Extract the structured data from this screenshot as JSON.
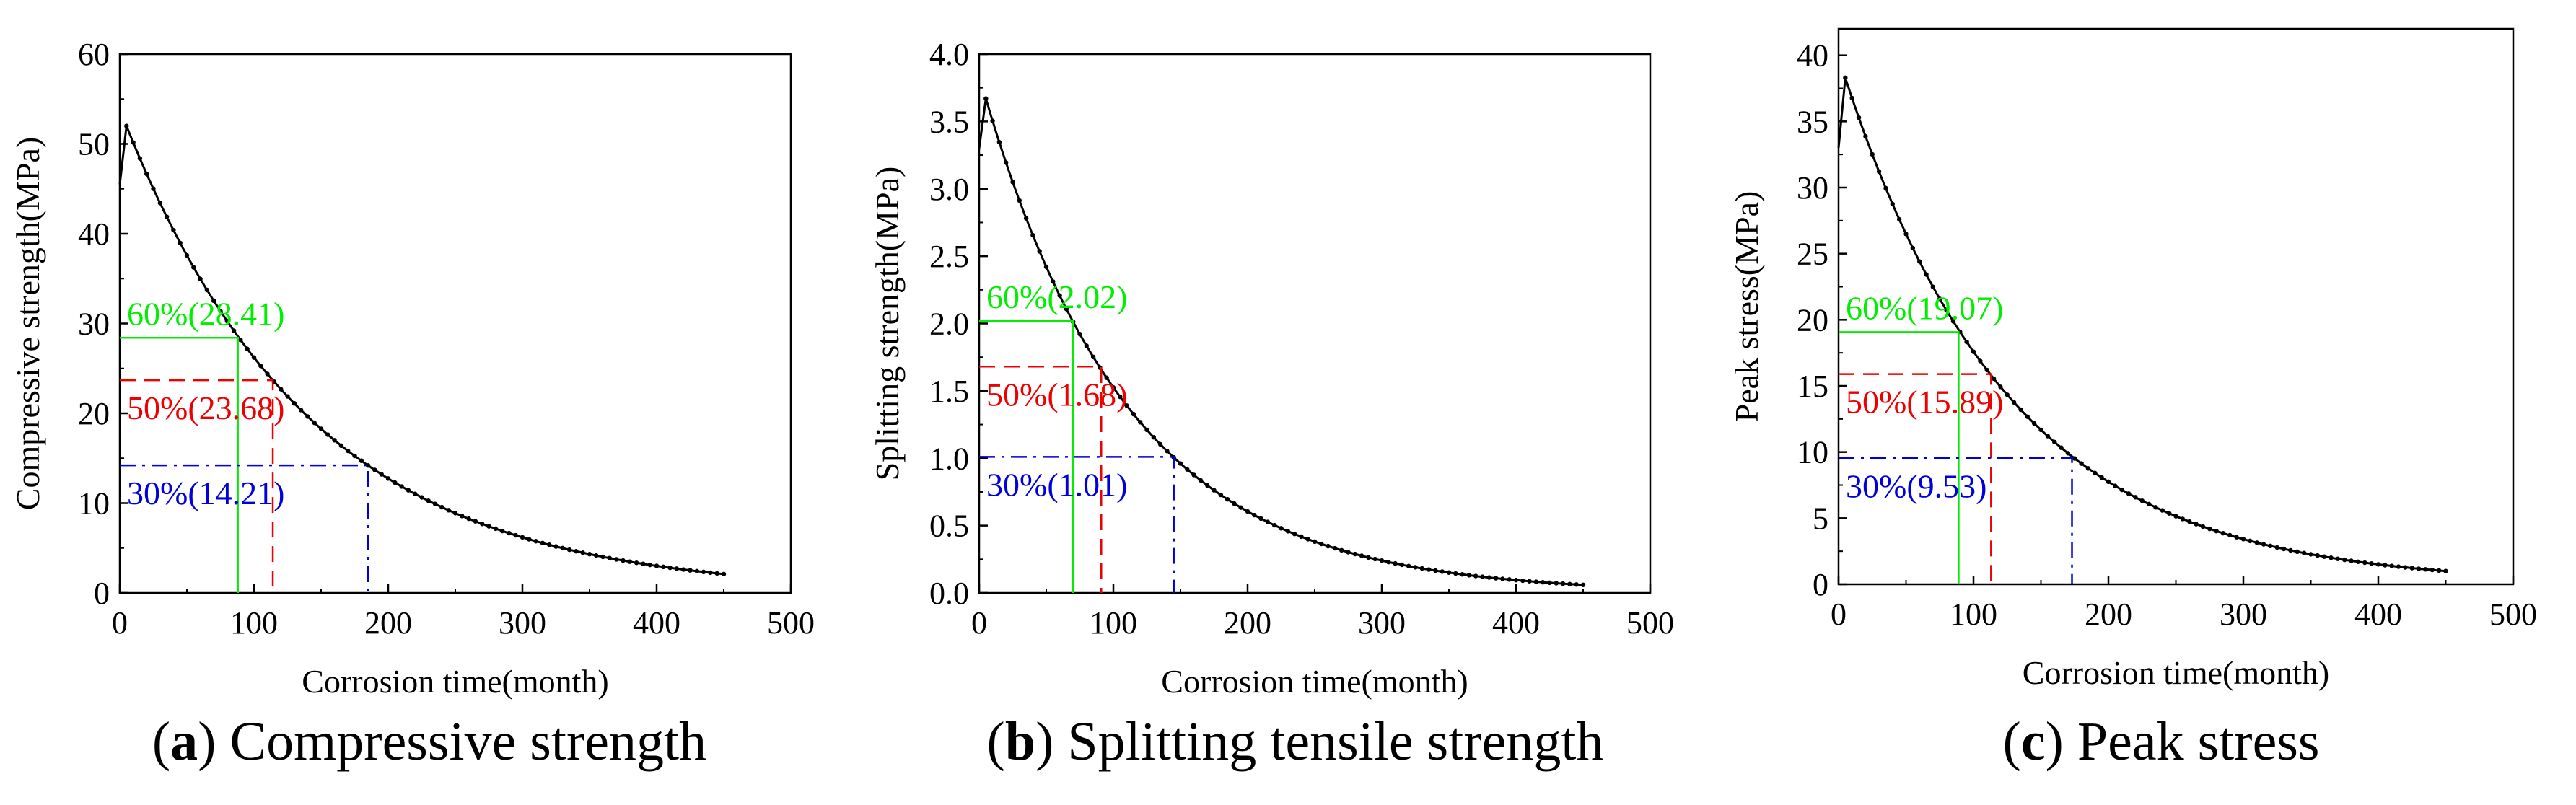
{
  "colors": {
    "curve": "#000000",
    "sixty": "#00ee00",
    "fifty": "#ee0000",
    "thirty": "#0000dd",
    "axis": "#000000"
  },
  "chart_data": [
    {
      "type": "line",
      "caption_letter": "a",
      "caption_text": "Compressive strength",
      "xlabel": "Corrosion time(month)",
      "ylabel": "Compressive strength(MPa)",
      "xlim": [
        0,
        500
      ],
      "ylim": [
        0,
        60
      ],
      "xticks": [
        0,
        100,
        200,
        300,
        400,
        500
      ],
      "xtick_labels": [
        "0",
        "100",
        "200",
        "300",
        "400",
        "500"
      ],
      "yticks": [
        0,
        10,
        20,
        30,
        40,
        50,
        60
      ],
      "ytick_labels": [
        "0",
        "10",
        "20",
        "30",
        "40",
        "50",
        "60"
      ],
      "curve": {
        "x_start": 0,
        "y_start": 45.5,
        "peak_x": 5,
        "peak_y": 52,
        "x_end": 450,
        "y_end": 2.1,
        "marker_step": 5
      },
      "thresholds": [
        {
          "key": "sixty",
          "label": "60%(28.41)",
          "y": 28.41,
          "x": 88,
          "dash": "none"
        },
        {
          "key": "fifty",
          "label": "50%(23.68)",
          "y": 23.68,
          "x": 114,
          "dash": "dashed"
        },
        {
          "key": "thirty",
          "label": "30%(14.21)",
          "y": 14.21,
          "x": 185,
          "dash": "dashdot"
        }
      ]
    },
    {
      "type": "line",
      "caption_letter": "b",
      "caption_text": "Splitting tensile strength",
      "xlabel": "Corrosion time(month)",
      "ylabel": "Splitting strength(MPa)",
      "xlim": [
        0,
        500
      ],
      "ylim": [
        0,
        4
      ],
      "xticks": [
        0,
        100,
        200,
        300,
        400,
        500
      ],
      "xtick_labels": [
        "0",
        "100",
        "200",
        "300",
        "400",
        "500"
      ],
      "yticks": [
        0,
        0.5,
        1,
        1.5,
        2,
        2.5,
        3,
        3.5,
        4
      ],
      "ytick_labels": [
        "0.0",
        "0.5",
        "1.0",
        "1.5",
        "2.0",
        "2.5",
        "3.0",
        "3.5",
        "4.0"
      ],
      "curve": {
        "x_start": 0,
        "y_start": 3.3,
        "peak_x": 5,
        "peak_y": 3.67,
        "x_end": 450,
        "y_end": 0.06,
        "marker_step": 5
      },
      "thresholds": [
        {
          "key": "sixty",
          "label": "60%(2.02)",
          "y": 2.02,
          "x": 70,
          "dash": "none"
        },
        {
          "key": "fifty",
          "label": "50%(1.68)",
          "y": 1.68,
          "x": 91,
          "dash": "dashed"
        },
        {
          "key": "thirty",
          "label": "30%(1.01)",
          "y": 1.01,
          "x": 145,
          "dash": "dashdot"
        }
      ]
    },
    {
      "type": "line",
      "caption_letter": "c",
      "caption_text": "Peak stress",
      "xlabel": "Corrosion time(month)",
      "ylabel": "Peak stress(MPa)",
      "xlim": [
        0,
        500
      ],
      "ylim": [
        0,
        42
      ],
      "xticks": [
        0,
        100,
        200,
        300,
        400,
        500
      ],
      "xtick_labels": [
        "0",
        "100",
        "200",
        "300",
        "400",
        "500"
      ],
      "yticks": [
        0,
        5,
        10,
        15,
        20,
        25,
        30,
        35,
        40
      ],
      "ytick_labels": [
        "0",
        "5",
        "10",
        "15",
        "20",
        "25",
        "30",
        "35",
        "40"
      ],
      "curve": {
        "x_start": 0,
        "y_start": 33,
        "peak_x": 5,
        "peak_y": 38.3,
        "x_end": 450,
        "y_end": 1.0,
        "marker_step": 5
      },
      "thresholds": [
        {
          "key": "sixty",
          "label": "60%(19.07)",
          "y": 19.07,
          "x": 89,
          "dash": "none"
        },
        {
          "key": "fifty",
          "label": "50%(15.89)",
          "y": 15.89,
          "x": 113,
          "dash": "dashed"
        },
        {
          "key": "thirty",
          "label": "30%(9.53)",
          "y": 9.53,
          "x": 173,
          "dash": "dashdot"
        }
      ]
    }
  ]
}
